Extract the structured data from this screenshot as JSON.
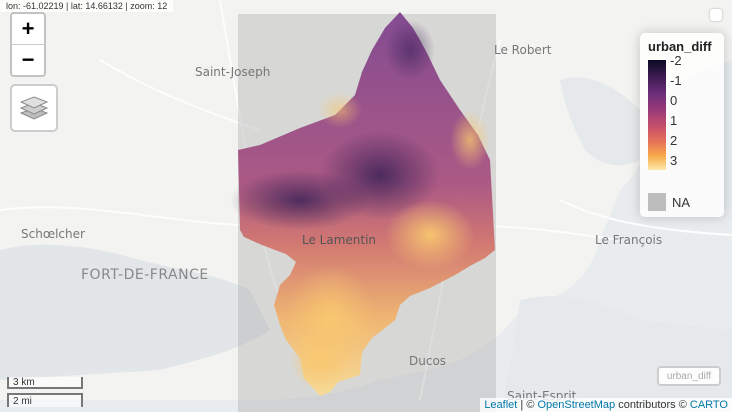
{
  "coords": "lon: -61.02219 | lat: 14.66132 | zoom: 12",
  "zoom": {
    "in_label": "+",
    "out_label": "−"
  },
  "places": {
    "saint_joseph": "Saint-Joseph",
    "le_robert": "Le Robert",
    "schoelcher": "Schœlcher",
    "fort_de_france": "FORT-DE-FRANCE",
    "le_lamentin": "Le Lamentin",
    "le_francois": "Le François",
    "ducos": "Ducos",
    "saint_esprit": "Saint-Esprit"
  },
  "legend": {
    "title": "urban_diff",
    "labels": [
      "-2",
      "-1",
      "0",
      "1",
      "2",
      "3"
    ],
    "na_label": "NA",
    "colors": [
      "#0a0a25",
      "#6b2c7a",
      "#c54f6b",
      "#f7a94a",
      "#fde9a9"
    ],
    "na_color": "#bdbdbd"
  },
  "scale": {
    "metric": "3 km",
    "imperial": "2 mi"
  },
  "layer_badge": "urban_diff",
  "attribution": {
    "leaflet": "Leaflet",
    "sep": " | © ",
    "osm": "OpenStreetMap",
    "contrib": " contributors © ",
    "carto": "CARTO"
  }
}
